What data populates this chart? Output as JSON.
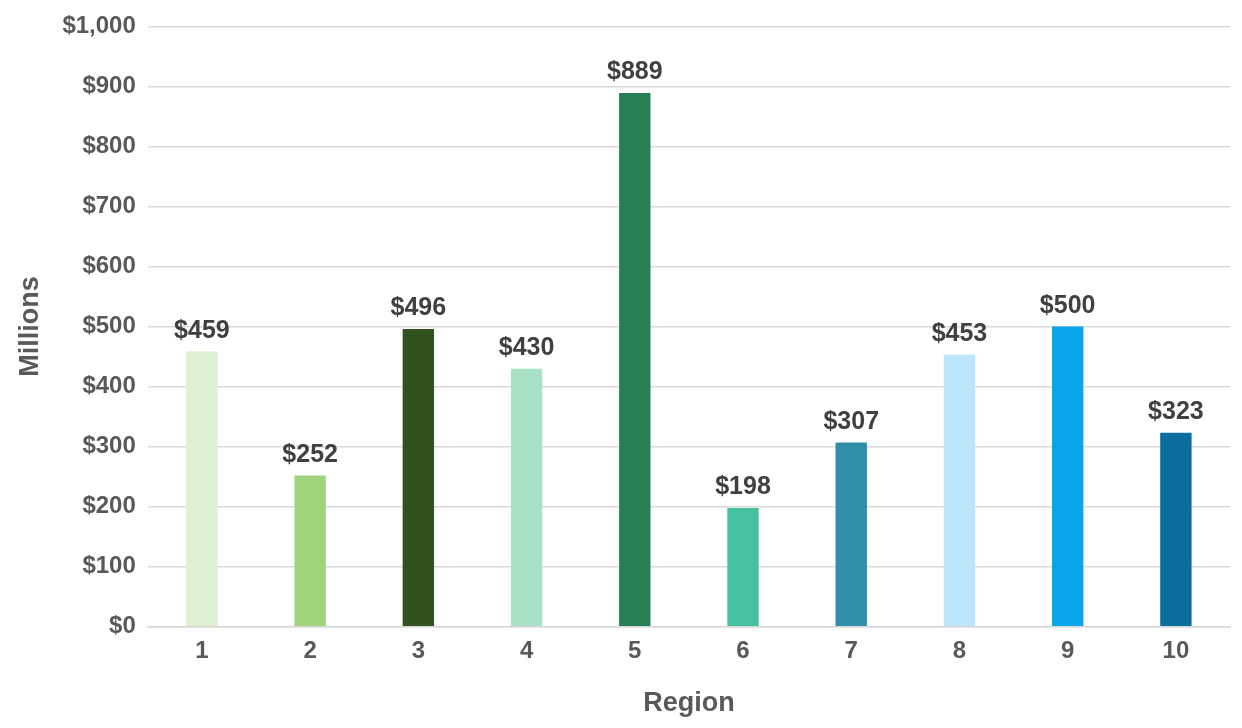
{
  "chart_data": {
    "type": "bar",
    "xlabel": "Region",
    "ylabel": "Millions",
    "categories": [
      "1",
      "2",
      "3",
      "4",
      "5",
      "6",
      "7",
      "8",
      "9",
      "10"
    ],
    "values": [
      459,
      252,
      496,
      430,
      889,
      198,
      307,
      453,
      500,
      323
    ],
    "colors": [
      "#dff0d2",
      "#a0d47c",
      "#31521d",
      "#a8e2c6",
      "#277f55",
      "#45c1a2",
      "#2f8fa8",
      "#bbe5fa",
      "#0ba3ea",
      "#0b6e9e"
    ],
    "value_labels": [
      "$459",
      "$252",
      "$496",
      "$430",
      "$889",
      "$198",
      "$307",
      "$453",
      "$500",
      "$323"
    ],
    "ylim": [
      0,
      1000
    ],
    "yticks": [
      {
        "value": 0,
        "label": "$0"
      },
      {
        "value": 100,
        "label": "$100"
      },
      {
        "value": 200,
        "label": "$200"
      },
      {
        "value": 300,
        "label": "$300"
      },
      {
        "value": 400,
        "label": "$400"
      },
      {
        "value": 500,
        "label": "$500"
      },
      {
        "value": 600,
        "label": "$600"
      },
      {
        "value": 700,
        "label": "$700"
      },
      {
        "value": 800,
        "label": "$800"
      },
      {
        "value": 900,
        "label": "$900"
      },
      {
        "value": 1000,
        "label": "$1,000"
      }
    ],
    "grid": "y"
  }
}
